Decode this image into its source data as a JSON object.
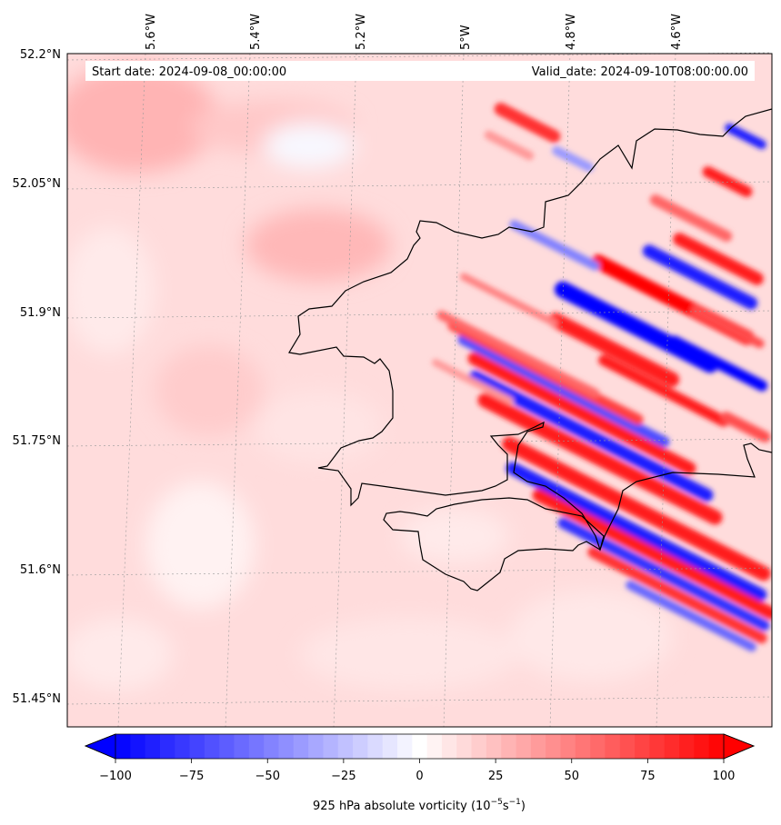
{
  "map": {
    "start_date": "Start date: 2024-09-08_00:00:00",
    "valid_date": "Valid_date: 2024-09-10T08:00:00.00",
    "lon_labels": [
      "5.6°W",
      "5.4°W",
      "5.2°W",
      "5°W",
      "4.8°W",
      "4.6°W"
    ],
    "lat_labels": [
      "52.2°N",
      "52.05°N",
      "51.9°N",
      "51.75°N",
      "51.6°N",
      "51.45°N"
    ]
  },
  "colorbar": {
    "ticks": [
      "−100",
      "−75",
      "−50",
      "−25",
      "0",
      "25",
      "50",
      "75",
      "100"
    ],
    "label_main": "925 hPa absolute vorticity (10",
    "label_exp1": "−5",
    "label_mid": "s",
    "label_exp2": "−1",
    "label_end": ")",
    "min": -100,
    "max": 100,
    "levels": 41
  },
  "colors": {
    "negative": "#0000ff",
    "positive": "#ff0000",
    "neutral": "#ffffff",
    "coast": "#000000"
  }
}
